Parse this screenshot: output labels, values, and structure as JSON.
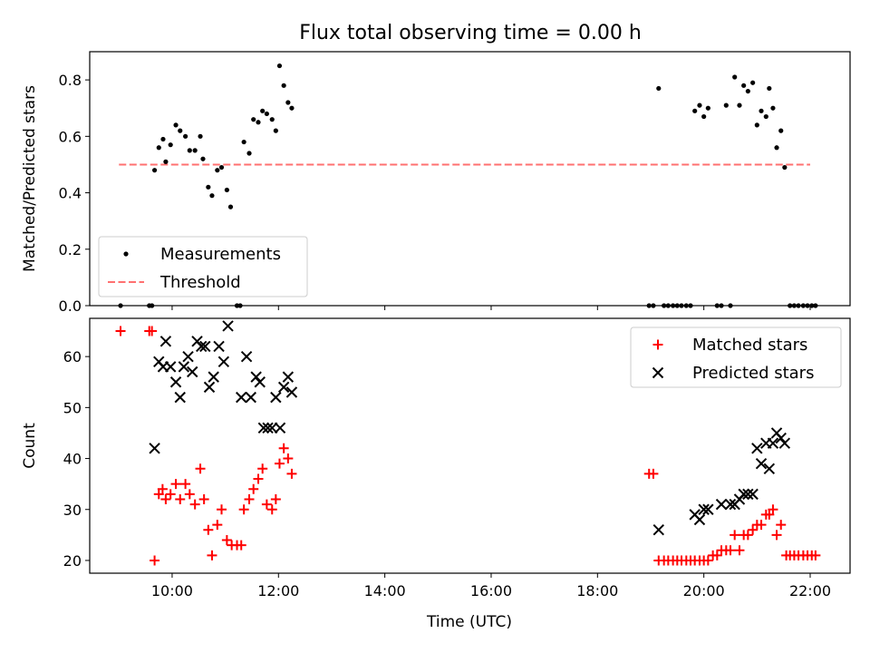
{
  "chart_data": {
    "type": "scatter",
    "title": "Flux total observing time = 0.00 h",
    "xlabel": "Time (UTC)",
    "xlim": [
      8.45,
      22.75
    ],
    "xticks": [
      {
        "v": 10,
        "label": "10:00"
      },
      {
        "v": 12,
        "label": "12:00"
      },
      {
        "v": 14,
        "label": "14:00"
      },
      {
        "v": 16,
        "label": "16:00"
      },
      {
        "v": 18,
        "label": "18:00"
      },
      {
        "v": 20,
        "label": "20:00"
      },
      {
        "v": 22,
        "label": "22:00"
      }
    ],
    "panels": [
      {
        "ylabel": "Matched/Predicted stars",
        "ylim": [
          0,
          0.9
        ],
        "yticks": [
          {
            "v": 0,
            "label": "0.0"
          },
          {
            "v": 0.2,
            "label": "0.2"
          },
          {
            "v": 0.4,
            "label": "0.4"
          },
          {
            "v": 0.6,
            "label": "0.6"
          },
          {
            "v": 0.8,
            "label": "0.8"
          }
        ],
        "legend_position": "lower-left",
        "series": [
          {
            "name": "Measurements",
            "marker": "dot",
            "color": "#000000",
            "points": [
              [
                9.03,
                0
              ],
              [
                9.57,
                0
              ],
              [
                9.62,
                0
              ],
              [
                9.67,
                0.48
              ],
              [
                9.75,
                0.56
              ],
              [
                9.83,
                0.59
              ],
              [
                9.88,
                0.51
              ],
              [
                9.97,
                0.57
              ],
              [
                10.07,
                0.64
              ],
              [
                10.15,
                0.62
              ],
              [
                10.25,
                0.6
              ],
              [
                10.33,
                0.55
              ],
              [
                10.43,
                0.55
              ],
              [
                10.53,
                0.6
              ],
              [
                10.58,
                0.52
              ],
              [
                10.68,
                0.42
              ],
              [
                10.75,
                0.39
              ],
              [
                10.85,
                0.48
              ],
              [
                10.93,
                0.49
              ],
              [
                11.03,
                0.41
              ],
              [
                11.1,
                0.35
              ],
              [
                11.22,
                0
              ],
              [
                11.28,
                0
              ],
              [
                11.35,
                0.58
              ],
              [
                11.45,
                0.54
              ],
              [
                11.53,
                0.66
              ],
              [
                11.62,
                0.65
              ],
              [
                11.7,
                0.69
              ],
              [
                11.78,
                0.68
              ],
              [
                11.88,
                0.66
              ],
              [
                11.95,
                0.62
              ],
              [
                12.02,
                0.85
              ],
              [
                12.1,
                0.78
              ],
              [
                12.18,
                0.72
              ],
              [
                12.25,
                0.7
              ],
              [
                18.97,
                0
              ],
              [
                19.05,
                0
              ],
              [
                19.15,
                0.77
              ],
              [
                19.25,
                0
              ],
              [
                19.33,
                0
              ],
              [
                19.42,
                0
              ],
              [
                19.5,
                0
              ],
              [
                19.58,
                0
              ],
              [
                19.67,
                0
              ],
              [
                19.75,
                0
              ],
              [
                19.83,
                0.69
              ],
              [
                19.92,
                0.71
              ],
              [
                20.0,
                0.67
              ],
              [
                20.08,
                0.7
              ],
              [
                20.25,
                0
              ],
              [
                20.33,
                0
              ],
              [
                20.42,
                0.71
              ],
              [
                20.5,
                0
              ],
              [
                20.58,
                0.81
              ],
              [
                20.67,
                0.71
              ],
              [
                20.75,
                0.78
              ],
              [
                20.83,
                0.76
              ],
              [
                20.92,
                0.79
              ],
              [
                21.0,
                0.64
              ],
              [
                21.08,
                0.69
              ],
              [
                21.17,
                0.67
              ],
              [
                21.23,
                0.77
              ],
              [
                21.3,
                0.7
              ],
              [
                21.37,
                0.56
              ],
              [
                21.45,
                0.62
              ],
              [
                21.52,
                0.49
              ],
              [
                21.62,
                0
              ],
              [
                21.7,
                0
              ],
              [
                21.78,
                0
              ],
              [
                21.87,
                0
              ],
              [
                21.95,
                0
              ],
              [
                22.03,
                0
              ],
              [
                22.1,
                0
              ]
            ]
          },
          {
            "name": "Threshold",
            "marker": "dashed-line",
            "color": "#ff7070",
            "points": [
              [
                9.0,
                0.5
              ],
              [
                22.0,
                0.5
              ]
            ]
          }
        ]
      },
      {
        "ylabel": "Count",
        "ylim": [
          17.5,
          67.5
        ],
        "yticks": [
          {
            "v": 20,
            "label": "20"
          },
          {
            "v": 30,
            "label": "30"
          },
          {
            "v": 40,
            "label": "40"
          },
          {
            "v": 50,
            "label": "50"
          },
          {
            "v": 60,
            "label": "60"
          }
        ],
        "legend_position": "upper-right",
        "series": [
          {
            "name": "Matched stars",
            "marker": "plus",
            "color": "#ff0000",
            "points": [
              [
                9.03,
                65
              ],
              [
                9.57,
                65
              ],
              [
                9.62,
                65
              ],
              [
                9.67,
                20
              ],
              [
                9.75,
                33
              ],
              [
                9.82,
                34
              ],
              [
                9.88,
                32
              ],
              [
                9.97,
                33
              ],
              [
                10.07,
                35
              ],
              [
                10.15,
                32
              ],
              [
                10.25,
                35
              ],
              [
                10.33,
                33
              ],
              [
                10.43,
                31
              ],
              [
                10.53,
                38
              ],
              [
                10.6,
                32
              ],
              [
                10.68,
                26
              ],
              [
                10.75,
                21
              ],
              [
                10.85,
                27
              ],
              [
                10.93,
                30
              ],
              [
                11.03,
                24
              ],
              [
                11.12,
                23
              ],
              [
                11.22,
                23
              ],
              [
                11.3,
                23
              ],
              [
                11.35,
                30
              ],
              [
                11.45,
                32
              ],
              [
                11.53,
                34
              ],
              [
                11.62,
                36
              ],
              [
                11.7,
                38
              ],
              [
                11.78,
                31
              ],
              [
                11.88,
                30
              ],
              [
                11.95,
                32
              ],
              [
                12.02,
                39
              ],
              [
                12.1,
                42
              ],
              [
                12.18,
                40
              ],
              [
                12.25,
                37
              ],
              [
                18.97,
                37
              ],
              [
                19.05,
                37
              ],
              [
                19.15,
                20
              ],
              [
                19.25,
                20
              ],
              [
                19.33,
                20
              ],
              [
                19.42,
                20
              ],
              [
                19.5,
                20
              ],
              [
                19.58,
                20
              ],
              [
                19.67,
                20
              ],
              [
                19.75,
                20
              ],
              [
                19.83,
                20
              ],
              [
                19.92,
                20
              ],
              [
                20.0,
                20
              ],
              [
                20.08,
                20
              ],
              [
                20.17,
                21
              ],
              [
                20.25,
                21
              ],
              [
                20.33,
                22
              ],
              [
                20.42,
                22
              ],
              [
                20.5,
                22
              ],
              [
                20.58,
                25
              ],
              [
                20.67,
                22
              ],
              [
                20.75,
                25
              ],
              [
                20.83,
                25
              ],
              [
                20.92,
                26
              ],
              [
                21.0,
                27
              ],
              [
                21.08,
                27
              ],
              [
                21.17,
                29
              ],
              [
                21.23,
                29
              ],
              [
                21.3,
                30
              ],
              [
                21.37,
                25
              ],
              [
                21.45,
                27
              ],
              [
                21.55,
                21
              ],
              [
                21.62,
                21
              ],
              [
                21.7,
                21
              ],
              [
                21.78,
                21
              ],
              [
                21.87,
                21
              ],
              [
                21.95,
                21
              ],
              [
                22.03,
                21
              ],
              [
                22.1,
                21
              ]
            ]
          },
          {
            "name": "Predicted stars",
            "marker": "x",
            "color": "#000000",
            "points": [
              [
                9.67,
                42
              ],
              [
                9.75,
                59
              ],
              [
                9.83,
                58
              ],
              [
                9.88,
                63
              ],
              [
                9.97,
                58
              ],
              [
                10.07,
                55
              ],
              [
                10.15,
                52
              ],
              [
                10.22,
                58
              ],
              [
                10.3,
                60
              ],
              [
                10.38,
                57
              ],
              [
                10.47,
                63
              ],
              [
                10.55,
                62
              ],
              [
                10.62,
                62
              ],
              [
                10.7,
                54
              ],
              [
                10.78,
                56
              ],
              [
                10.88,
                62
              ],
              [
                10.97,
                59
              ],
              [
                11.05,
                66
              ],
              [
                11.3,
                52
              ],
              [
                11.4,
                60
              ],
              [
                11.48,
                52
              ],
              [
                11.58,
                56
              ],
              [
                11.65,
                55
              ],
              [
                11.72,
                46
              ],
              [
                11.8,
                46
              ],
              [
                11.88,
                46
              ],
              [
                11.95,
                52
              ],
              [
                12.03,
                46
              ],
              [
                12.1,
                54
              ],
              [
                12.18,
                56
              ],
              [
                12.25,
                53
              ],
              [
                19.15,
                26
              ],
              [
                19.83,
                29
              ],
              [
                19.92,
                28
              ],
              [
                20.0,
                30
              ],
              [
                20.08,
                30
              ],
              [
                20.33,
                31
              ],
              [
                20.5,
                31
              ],
              [
                20.58,
                31
              ],
              [
                20.67,
                32
              ],
              [
                20.75,
                33
              ],
              [
                20.83,
                33
              ],
              [
                20.92,
                33
              ],
              [
                21.0,
                42
              ],
              [
                21.08,
                39
              ],
              [
                21.17,
                43
              ],
              [
                21.23,
                38
              ],
              [
                21.3,
                43
              ],
              [
                21.37,
                45
              ],
              [
                21.45,
                44
              ],
              [
                21.52,
                43
              ]
            ]
          }
        ]
      }
    ]
  }
}
